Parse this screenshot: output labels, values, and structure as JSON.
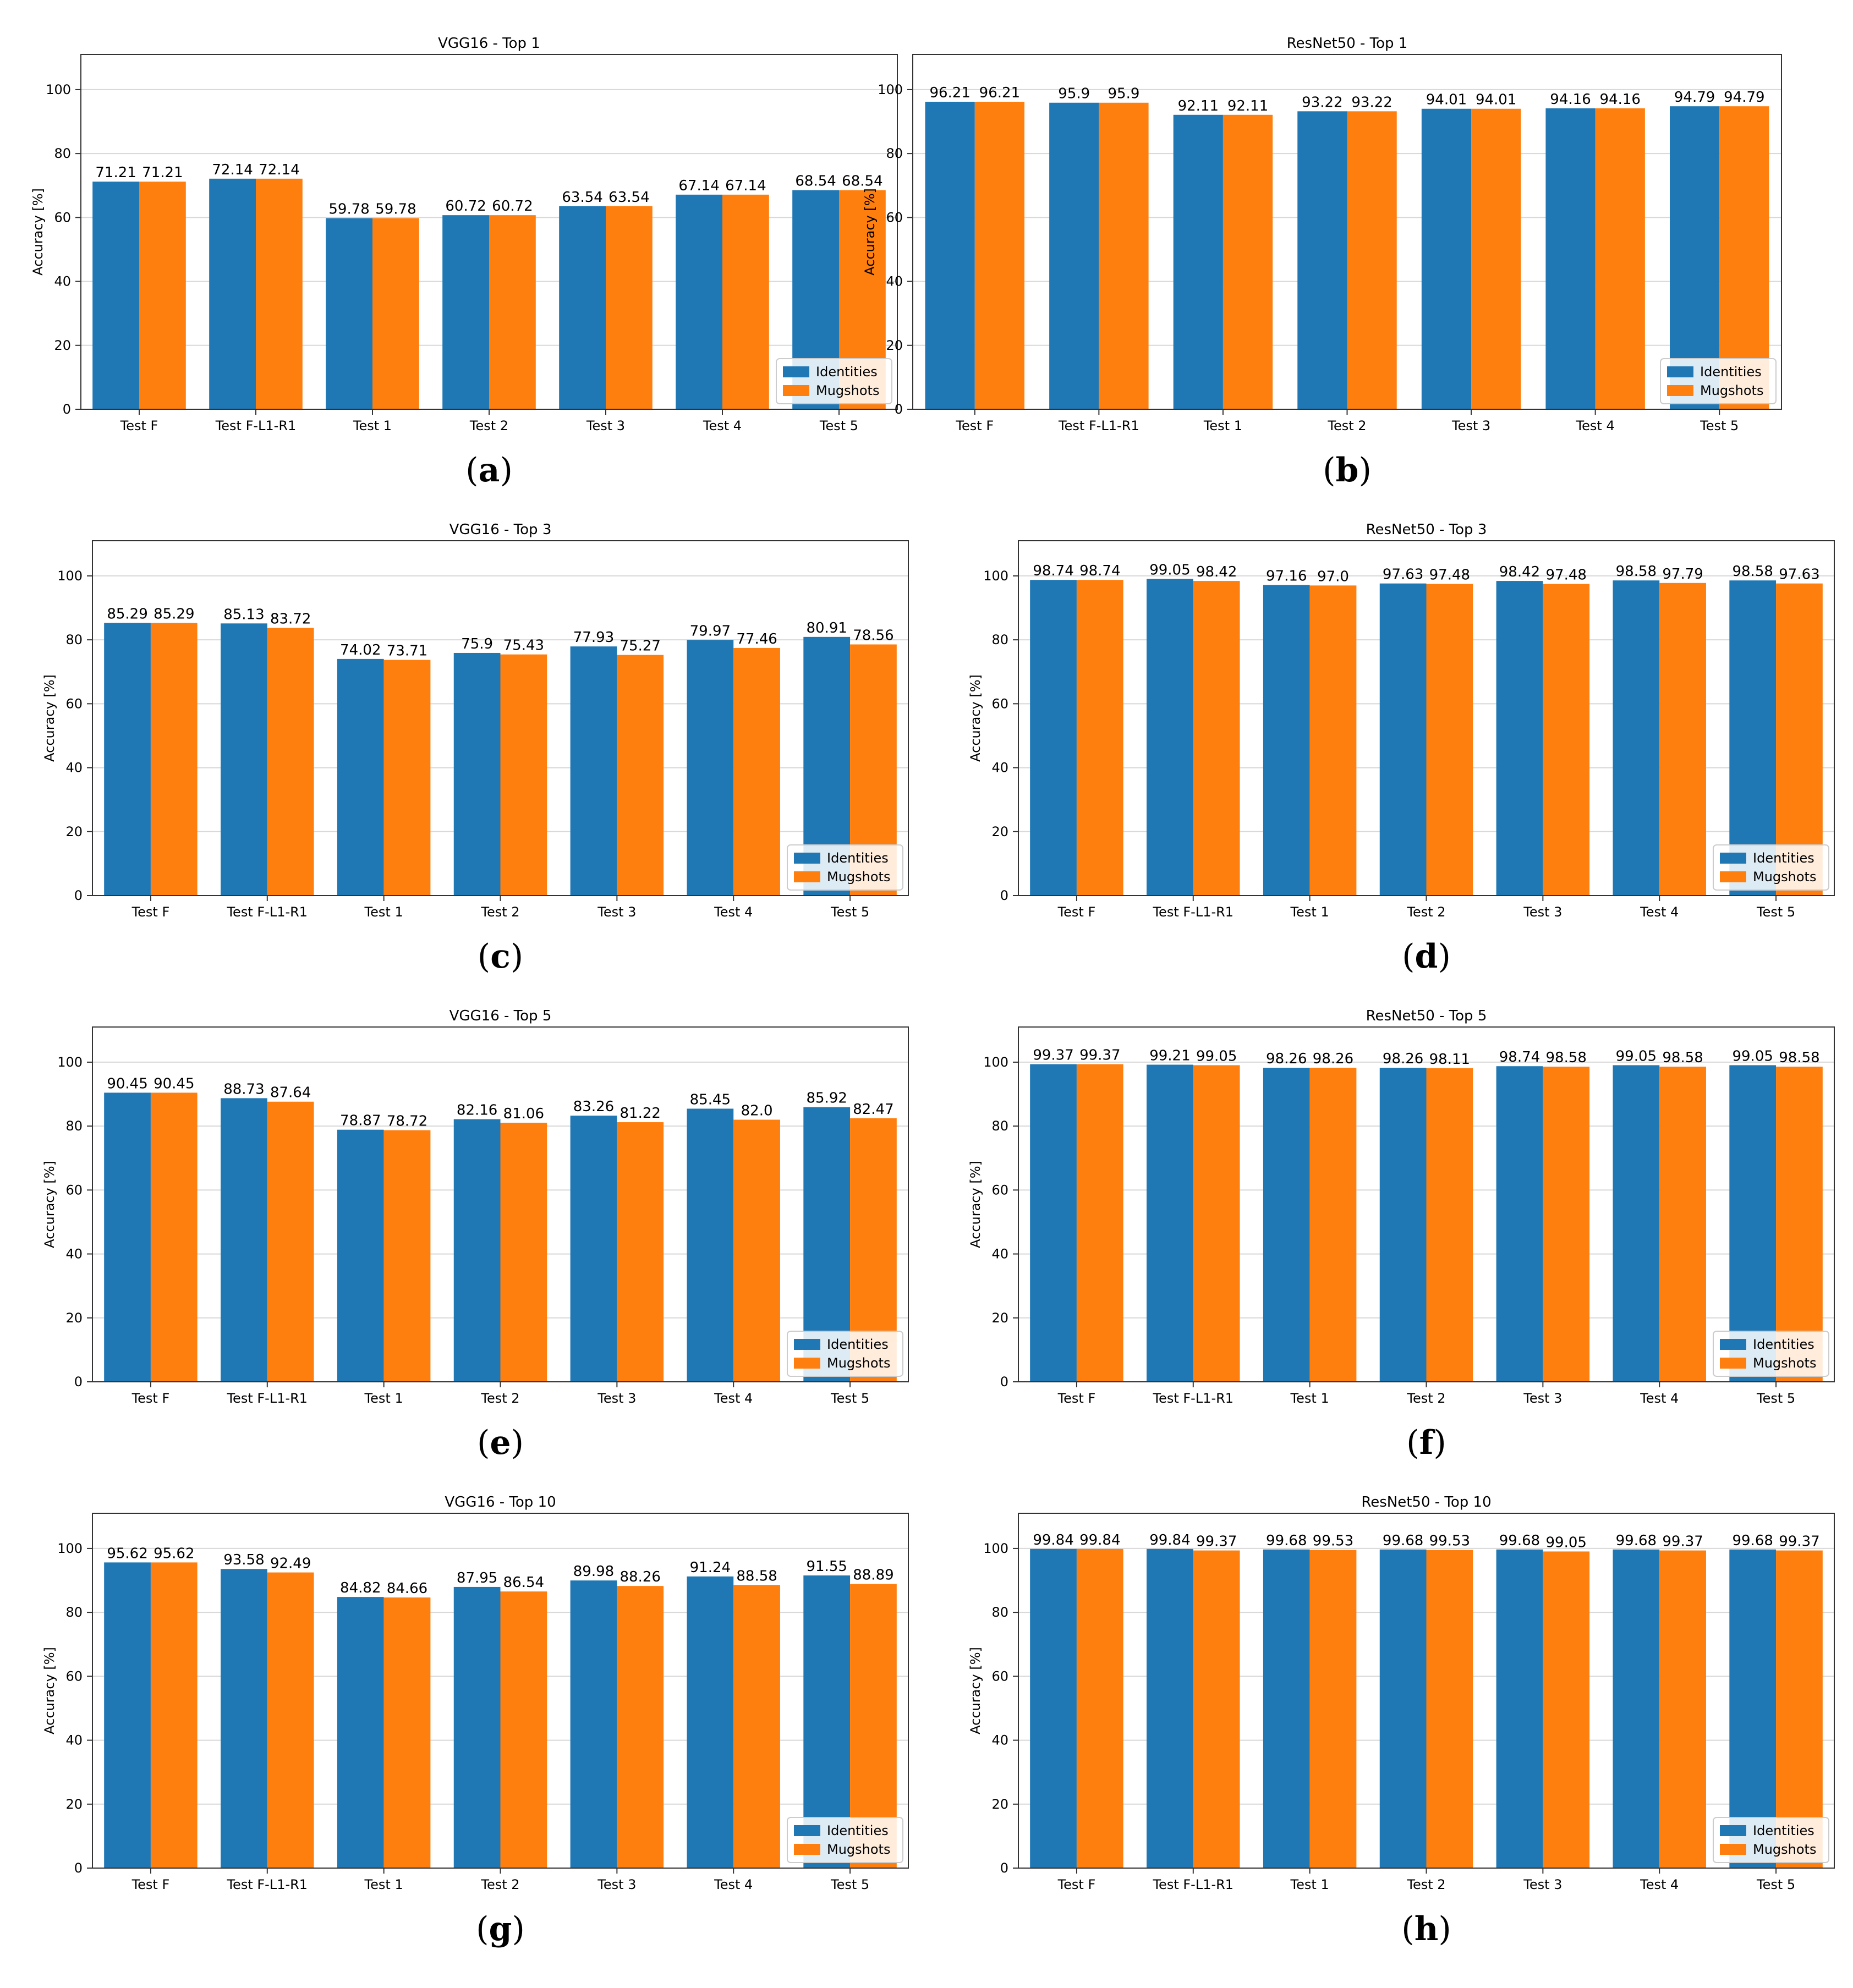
{
  "legend": {
    "identities": "Identities",
    "mugshots": "Mugshots"
  },
  "colors": {
    "identities": "#1f77b4",
    "mugshots": "#ff7f0e",
    "grid": "#d8d8d8",
    "axis": "#333333"
  },
  "chart_data": [
    {
      "id": "a",
      "type": "bar",
      "title": "VGG16 - Top 1",
      "categories": [
        "Test F",
        "Test F-L1-R1",
        "Test 1",
        "Test 2",
        "Test 3",
        "Test 4",
        "Test 5"
      ],
      "series": [
        {
          "name": "Identities",
          "values": [
            71.21,
            72.14,
            59.78,
            60.72,
            63.54,
            67.14,
            68.54
          ],
          "labels": [
            "71.21",
            "72.14",
            "59.78",
            "60.72",
            "63.54",
            "67.14",
            "68.54"
          ]
        },
        {
          "name": "Mugshots",
          "values": [
            71.21,
            72.14,
            59.78,
            60.72,
            63.54,
            67.14,
            68.54
          ],
          "labels": [
            "71.21",
            "72.14",
            "59.78",
            "60.72",
            "63.54",
            "67.14",
            "68.54"
          ]
        }
      ],
      "ylabel": "Accuracy [%]",
      "ylim": [
        0,
        111
      ],
      "yticks": [
        "0",
        "20",
        "40",
        "60",
        "80",
        "100"
      ],
      "grid": true,
      "legend": "lower-right",
      "caption": "a"
    },
    {
      "id": "b",
      "type": "bar",
      "title": "ResNet50 - Top 1",
      "categories": [
        "Test F",
        "Test F-L1-R1",
        "Test 1",
        "Test 2",
        "Test 3",
        "Test 4",
        "Test 5"
      ],
      "series": [
        {
          "name": "Identities",
          "values": [
            96.21,
            95.9,
            92.11,
            93.22,
            94.01,
            94.16,
            94.79
          ],
          "labels": [
            "96.21",
            "95.9",
            "92.11",
            "93.22",
            "94.01",
            "94.16",
            "94.79"
          ]
        },
        {
          "name": "Mugshots",
          "values": [
            96.21,
            95.9,
            92.11,
            93.22,
            94.01,
            94.16,
            94.79
          ],
          "labels": [
            "96.21",
            "95.9",
            "92.11",
            "93.22",
            "94.01",
            "94.16",
            "94.79"
          ]
        }
      ],
      "ylabel": "Accuracy [%]",
      "ylim": [
        0,
        111
      ],
      "yticks": [
        "0",
        "20",
        "40",
        "60",
        "80",
        "100"
      ],
      "grid": true,
      "legend": "lower-right",
      "caption": "b"
    },
    {
      "id": "c",
      "type": "bar",
      "title": "VGG16 - Top 3",
      "categories": [
        "Test F",
        "Test F-L1-R1",
        "Test 1",
        "Test 2",
        "Test 3",
        "Test 4",
        "Test 5"
      ],
      "series": [
        {
          "name": "Identities",
          "values": [
            85.29,
            85.13,
            74.02,
            75.9,
            77.93,
            79.97,
            80.91
          ],
          "labels": [
            "85.29",
            "85.13",
            "74.02",
            "75.9",
            "77.93",
            "79.97",
            "80.91"
          ]
        },
        {
          "name": "Mugshots",
          "values": [
            85.29,
            83.72,
            73.71,
            75.43,
            75.27,
            77.46,
            78.56
          ],
          "labels": [
            "85.29",
            "83.72",
            "73.71",
            "75.43",
            "75.27",
            "77.46",
            "78.56"
          ]
        }
      ],
      "ylabel": "Accuracy [%]",
      "ylim": [
        0,
        111
      ],
      "yticks": [
        "0",
        "20",
        "40",
        "60",
        "80",
        "100"
      ],
      "grid": true,
      "legend": "lower-right",
      "caption": "c"
    },
    {
      "id": "d",
      "type": "bar",
      "title": "ResNet50 - Top 3",
      "categories": [
        "Test F",
        "Test F-L1-R1",
        "Test 1",
        "Test 2",
        "Test 3",
        "Test 4",
        "Test 5"
      ],
      "series": [
        {
          "name": "Identities",
          "values": [
            98.74,
            99.05,
            97.16,
            97.63,
            98.42,
            98.58,
            98.58
          ],
          "labels": [
            "98.74",
            "99.05",
            "97.16",
            "97.63",
            "98.42",
            "98.58",
            "98.58"
          ]
        },
        {
          "name": "Mugshots",
          "values": [
            98.74,
            98.42,
            97.0,
            97.48,
            97.48,
            97.79,
            97.63
          ],
          "labels": [
            "98.74",
            "98.42",
            "97.0",
            "97.48",
            "97.48",
            "97.79",
            "97.63"
          ]
        }
      ],
      "ylabel": "Accuracy [%]",
      "ylim": [
        0,
        111
      ],
      "yticks": [
        "0",
        "20",
        "40",
        "60",
        "80",
        "100"
      ],
      "grid": true,
      "legend": "lower-right",
      "caption": "d"
    },
    {
      "id": "e",
      "type": "bar",
      "title": "VGG16 - Top 5",
      "categories": [
        "Test F",
        "Test F-L1-R1",
        "Test 1",
        "Test 2",
        "Test 3",
        "Test 4",
        "Test 5"
      ],
      "series": [
        {
          "name": "Identities",
          "values": [
            90.45,
            88.73,
            78.87,
            82.16,
            83.26,
            85.45,
            85.92
          ],
          "labels": [
            "90.45",
            "88.73",
            "78.87",
            "82.16",
            "83.26",
            "85.45",
            "85.92"
          ]
        },
        {
          "name": "Mugshots",
          "values": [
            90.45,
            87.64,
            78.72,
            81.06,
            81.22,
            82.0,
            82.47
          ],
          "labels": [
            "90.45",
            "87.64",
            "78.72",
            "81.06",
            "81.22",
            "82.0",
            "82.47"
          ]
        }
      ],
      "ylabel": "Accuracy [%]",
      "ylim": [
        0,
        111
      ],
      "yticks": [
        "0",
        "20",
        "40",
        "60",
        "80",
        "100"
      ],
      "grid": true,
      "legend": "lower-right",
      "caption": "e"
    },
    {
      "id": "f",
      "type": "bar",
      "title": "ResNet50 - Top 5",
      "categories": [
        "Test F",
        "Test F-L1-R1",
        "Test 1",
        "Test 2",
        "Test 3",
        "Test 4",
        "Test 5"
      ],
      "series": [
        {
          "name": "Identities",
          "values": [
            99.37,
            99.21,
            98.26,
            98.26,
            98.74,
            99.05,
            99.05
          ],
          "labels": [
            "99.37",
            "99.21",
            "98.26",
            "98.26",
            "98.74",
            "99.05",
            "99.05"
          ]
        },
        {
          "name": "Mugshots",
          "values": [
            99.37,
            99.05,
            98.26,
            98.11,
            98.58,
            98.58,
            98.58
          ],
          "labels": [
            "99.37",
            "99.05",
            "98.26",
            "98.11",
            "98.58",
            "98.58",
            "98.58"
          ]
        }
      ],
      "ylabel": "Accuracy [%]",
      "ylim": [
        0,
        111
      ],
      "yticks": [
        "0",
        "20",
        "40",
        "60",
        "80",
        "100"
      ],
      "grid": true,
      "legend": "lower-right",
      "caption": "f"
    },
    {
      "id": "g",
      "type": "bar",
      "title": "VGG16 - Top 10",
      "categories": [
        "Test F",
        "Test F-L1-R1",
        "Test 1",
        "Test 2",
        "Test 3",
        "Test 4",
        "Test 5"
      ],
      "series": [
        {
          "name": "Identities",
          "values": [
            95.62,
            93.58,
            84.82,
            87.95,
            89.98,
            91.24,
            91.55
          ],
          "labels": [
            "95.62",
            "93.58",
            "84.82",
            "87.95",
            "89.98",
            "91.24",
            "91.55"
          ]
        },
        {
          "name": "Mugshots",
          "values": [
            95.62,
            92.49,
            84.66,
            86.54,
            88.26,
            88.58,
            88.89
          ],
          "labels": [
            "95.62",
            "92.49",
            "84.66",
            "86.54",
            "88.26",
            "88.58",
            "88.89"
          ]
        }
      ],
      "ylabel": "Accuracy [%]",
      "ylim": [
        0,
        111
      ],
      "yticks": [
        "0",
        "20",
        "40",
        "60",
        "80",
        "100"
      ],
      "grid": true,
      "legend": "lower-right",
      "caption": "g"
    },
    {
      "id": "h",
      "type": "bar",
      "title": "ResNet50 - Top 10",
      "categories": [
        "Test F",
        "Test F-L1-R1",
        "Test 1",
        "Test 2",
        "Test 3",
        "Test 4",
        "Test 5"
      ],
      "series": [
        {
          "name": "Identities",
          "values": [
            99.84,
            99.84,
            99.68,
            99.68,
            99.68,
            99.68,
            99.68
          ],
          "labels": [
            "99.84",
            "99.84",
            "99.68",
            "99.68",
            "99.68",
            "99.68",
            "99.68"
          ]
        },
        {
          "name": "Mugshots",
          "values": [
            99.84,
            99.37,
            99.53,
            99.53,
            99.05,
            99.37,
            99.37
          ],
          "labels": [
            "99.84",
            "99.37",
            "99.53",
            "99.53",
            "99.05",
            "99.37",
            "99.37"
          ]
        }
      ],
      "ylabel": "Accuracy [%]",
      "ylim": [
        0,
        111
      ],
      "yticks": [
        "0",
        "20",
        "40",
        "60",
        "80",
        "100"
      ],
      "grid": true,
      "legend": "lower-right",
      "caption": "h"
    }
  ]
}
